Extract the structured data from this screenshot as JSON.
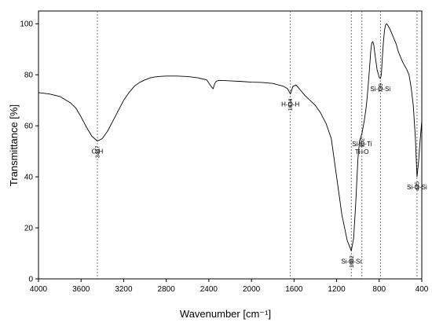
{
  "chart_data": {
    "type": "line",
    "xlabel": "Wavenumber [cm⁻¹]",
    "ylabel": "Transmittance [%]",
    "xlim": [
      4000,
      400
    ],
    "ylim": [
      0,
      105
    ],
    "x_reversed": true,
    "grid": false,
    "legend": "none",
    "xticks": [
      4000,
      3600,
      3200,
      2800,
      2400,
      2000,
      1600,
      1200,
      800,
      400
    ],
    "yticks": [
      0,
      20,
      40,
      60,
      80,
      100
    ],
    "series": [
      {
        "color": "#000000",
        "x": [
          4000,
          3900,
          3800,
          3700,
          3650,
          3600,
          3550,
          3500,
          3447,
          3400,
          3350,
          3300,
          3250,
          3200,
          3150,
          3100,
          3050,
          3000,
          2950,
          2900,
          2850,
          2800,
          2700,
          2600,
          2500,
          2420,
          2380,
          2360,
          2345,
          2330,
          2300,
          2200,
          2100,
          2000,
          1900,
          1800,
          1700,
          1660,
          1634,
          1610,
          1580,
          1500,
          1400,
          1350,
          1300,
          1250,
          1200,
          1150,
          1100,
          1062,
          1040,
          1020,
          1000,
          985,
          962,
          940,
          920,
          905,
          890,
          880,
          870,
          860,
          850,
          840,
          820,
          800,
          789,
          780,
          770,
          760,
          750,
          740,
          730,
          720,
          700,
          680,
          660,
          640,
          620,
          600,
          580,
          560,
          540,
          520,
          500,
          480,
          460,
          445,
          430,
          420,
          410,
          400
        ],
        "y": [
          73,
          72.5,
          71.5,
          69,
          67,
          63.5,
          59.5,
          56,
          54,
          55,
          58,
          62,
          66,
          70,
          73,
          75.5,
          77,
          78,
          78.8,
          79.2,
          79.4,
          79.5,
          79.5,
          79.3,
          78.8,
          78,
          75.5,
          74.5,
          76.5,
          77.5,
          77.8,
          77.6,
          77.4,
          77.1,
          77,
          76.6,
          75.5,
          74.5,
          72.5,
          75.5,
          76,
          72,
          68,
          65,
          61,
          55,
          40,
          25,
          15,
          11,
          16,
          30,
          47,
          54,
          57,
          62,
          68,
          75,
          83,
          89,
          92.5,
          93,
          91.5,
          88,
          82,
          79,
          78.5,
          80,
          87,
          93,
          97.5,
          99.5,
          100,
          99.5,
          98,
          96,
          94,
          92,
          89,
          87,
          85,
          83.5,
          82,
          80,
          75,
          68,
          55,
          40,
          46,
          52,
          57,
          62
        ]
      }
    ],
    "annotations": [
      {
        "x": 3447,
        "number": "3447",
        "label": "O-H"
      },
      {
        "x": 1634,
        "number": "1634",
        "label": "H-O-H"
      },
      {
        "x": 1062,
        "number": "1062",
        "label": "Si-O-Si"
      },
      {
        "x": 962,
        "number": "962",
        "label": "Si-O-Ti",
        "label2": "Ti=O"
      },
      {
        "x": 789,
        "number": "789",
        "label": "Si-O-Si"
      },
      {
        "x": 445,
        "number": "445",
        "label": "Si-O-Si"
      }
    ]
  }
}
